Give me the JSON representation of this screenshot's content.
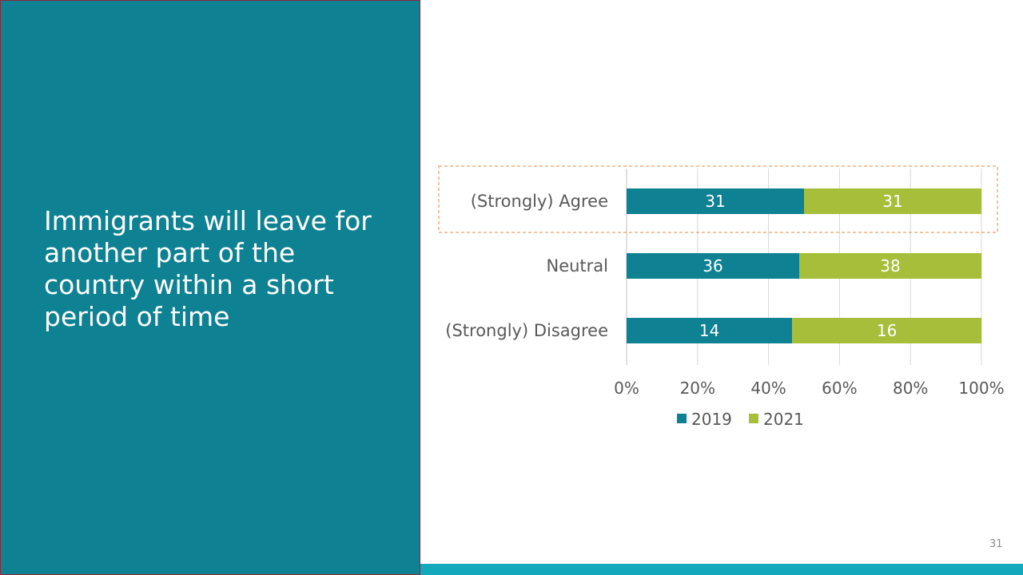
{
  "slide": {
    "title": "Immigrants will leave for another part of the country within a short period of time",
    "page_number": "31"
  },
  "colors": {
    "panel": "#0E8193",
    "series_2019": "#0E8193",
    "series_2021": "#A6BE3A",
    "highlight_box": "#E08B4A",
    "bottom_bar": "#13A9BD"
  },
  "chart_data": {
    "type": "bar",
    "orientation": "horizontal",
    "stacked": "percent",
    "categories": [
      "(Strongly)  Agree",
      "Neutral",
      "(Strongly)  Disagree"
    ],
    "series": [
      {
        "name": "2019",
        "values": [
          31,
          36,
          14
        ]
      },
      {
        "name": "2021",
        "values": [
          31,
          38,
          16
        ]
      }
    ],
    "x_ticks": [
      "0%",
      "20%",
      "40%",
      "60%",
      "80%",
      "100%"
    ],
    "xlim": [
      0,
      100
    ],
    "grid": true,
    "legend": "bottom",
    "highlighted_category": "(Strongly)  Agree"
  }
}
